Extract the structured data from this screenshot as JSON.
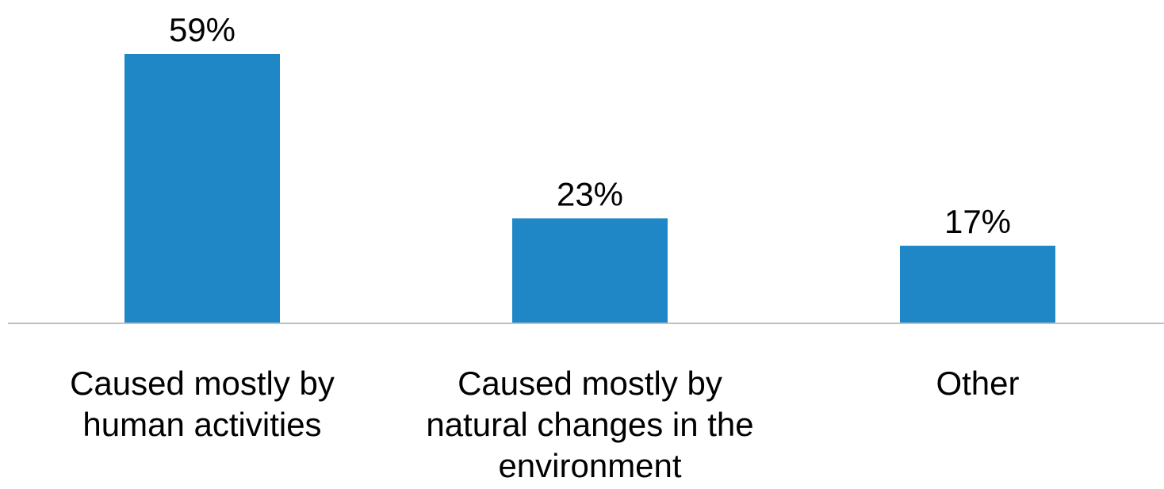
{
  "chart_data": {
    "type": "bar",
    "categories": [
      [
        "Caused mostly by",
        "human activities"
      ],
      [
        "Caused mostly by",
        "natural changes in the",
        "environment"
      ],
      [
        "Other"
      ]
    ],
    "values": [
      59,
      23,
      17
    ],
    "data_labels": [
      "59%",
      "23%",
      "17%"
    ],
    "title": "",
    "xlabel": "",
    "ylabel": "",
    "ylim": [
      0,
      59
    ],
    "grid": false,
    "legend": "none",
    "bar_color": "#2087C7",
    "axis_color": "#BFBFBF"
  }
}
